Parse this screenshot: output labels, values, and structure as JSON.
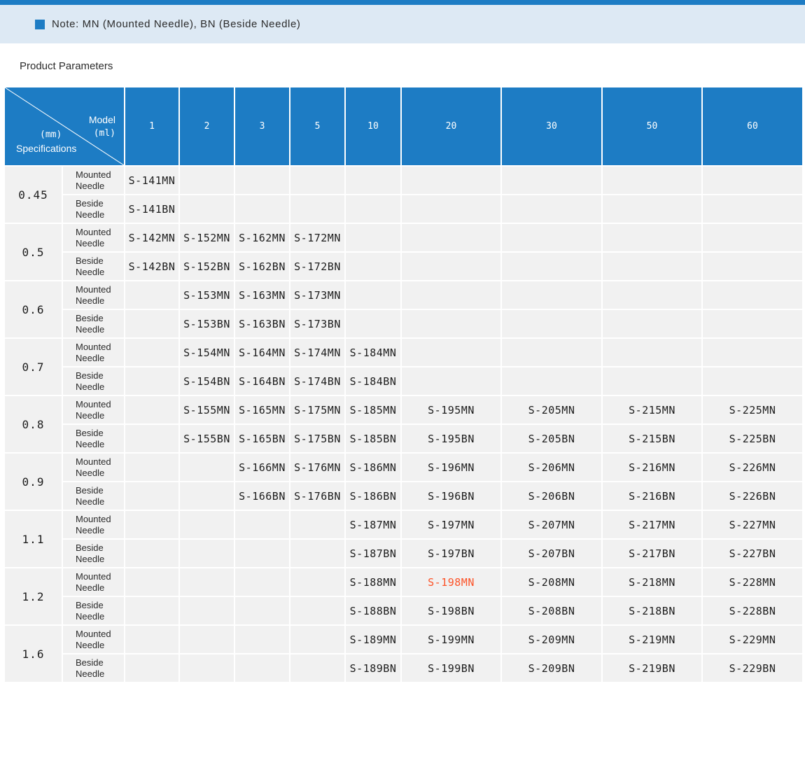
{
  "colors": {
    "primary_blue": "#1d7cc4",
    "note_background": "#dde9f4",
    "cell_background": "#f1f1f1",
    "text": "#333333",
    "highlight_orange": "#fc5227"
  },
  "note": {
    "bullet_icon": "blue-square",
    "text": "Note: MN (Mounted Needle), BN (Beside Needle)"
  },
  "heading": "Product Parameters",
  "table": {
    "corner": {
      "model_label": "Model",
      "model_unit": "(ml)",
      "spec_unit": "(mm)",
      "spec_label": "Specifications"
    },
    "columns": [
      "1",
      "2",
      "3",
      "5",
      "10",
      "20",
      "30",
      "50",
      "60"
    ],
    "needle_types": [
      {
        "line1": "Mounted",
        "line2": "Needle"
      },
      {
        "line1": "Beside",
        "line2": "Needle"
      }
    ],
    "rows": [
      {
        "spec": "0.45",
        "mounted": [
          "S-141MN",
          "",
          "",
          "",
          "",
          "",
          "",
          "",
          ""
        ],
        "beside": [
          "S-141BN",
          "",
          "",
          "",
          "",
          "",
          "",
          "",
          ""
        ]
      },
      {
        "spec": "0.5",
        "mounted": [
          "S-142MN",
          "S-152MN",
          "S-162MN",
          "S-172MN",
          "",
          "",
          "",
          "",
          ""
        ],
        "beside": [
          "S-142BN",
          "S-152BN",
          "S-162BN",
          "S-172BN",
          "",
          "",
          "",
          "",
          ""
        ]
      },
      {
        "spec": "0.6",
        "mounted": [
          "",
          "S-153MN",
          "S-163MN",
          "S-173MN",
          "",
          "",
          "",
          "",
          ""
        ],
        "beside": [
          "",
          "S-153BN",
          "S-163BN",
          "S-173BN",
          "",
          "",
          "",
          "",
          ""
        ]
      },
      {
        "spec": "0.7",
        "mounted": [
          "",
          "S-154MN",
          "S-164MN",
          "S-174MN",
          "S-184MN",
          "",
          "",
          "",
          ""
        ],
        "beside": [
          "",
          "S-154BN",
          "S-164BN",
          "S-174BN",
          "S-184BN",
          "",
          "",
          "",
          ""
        ]
      },
      {
        "spec": "0.8",
        "mounted": [
          "",
          "S-155MN",
          "S-165MN",
          "S-175MN",
          "S-185MN",
          "S-195MN",
          "S-205MN",
          "S-215MN",
          "S-225MN"
        ],
        "beside": [
          "",
          "S-155BN",
          "S-165BN",
          "S-175BN",
          "S-185BN",
          "S-195BN",
          "S-205BN",
          "S-215BN",
          "S-225BN"
        ]
      },
      {
        "spec": "0.9",
        "mounted": [
          "",
          "",
          "S-166MN",
          "S-176MN",
          "S-186MN",
          "S-196MN",
          "S-206MN",
          "S-216MN",
          "S-226MN"
        ],
        "beside": [
          "",
          "",
          "S-166BN",
          "S-176BN",
          "S-186BN",
          "S-196BN",
          "S-206BN",
          "S-216BN",
          "S-226BN"
        ]
      },
      {
        "spec": "1.1",
        "mounted": [
          "",
          "",
          "",
          "",
          "S-187MN",
          "S-197MN",
          "S-207MN",
          "S-217MN",
          "S-227MN"
        ],
        "beside": [
          "",
          "",
          "",
          "",
          "S-187BN",
          "S-197BN",
          "S-207BN",
          "S-217BN",
          "S-227BN"
        ]
      },
      {
        "spec": "1.2",
        "mounted": [
          "",
          "",
          "",
          "",
          "S-188MN",
          "S-198MN",
          "S-208MN",
          "S-218MN",
          "S-228MN"
        ],
        "beside": [
          "",
          "",
          "",
          "",
          "S-188BN",
          "S-198BN",
          "S-208BN",
          "S-218BN",
          "S-228BN"
        ]
      },
      {
        "spec": "1.6",
        "mounted": [
          "",
          "",
          "",
          "",
          "S-189MN",
          "S-199MN",
          "S-209MN",
          "S-219MN",
          "S-229MN"
        ],
        "beside": [
          "",
          "",
          "",
          "",
          "S-189BN",
          "S-199BN",
          "S-209BN",
          "S-219BN",
          "S-229BN"
        ]
      }
    ],
    "highlight": {
      "code": "S-198MN",
      "color": "#fc5227"
    }
  }
}
